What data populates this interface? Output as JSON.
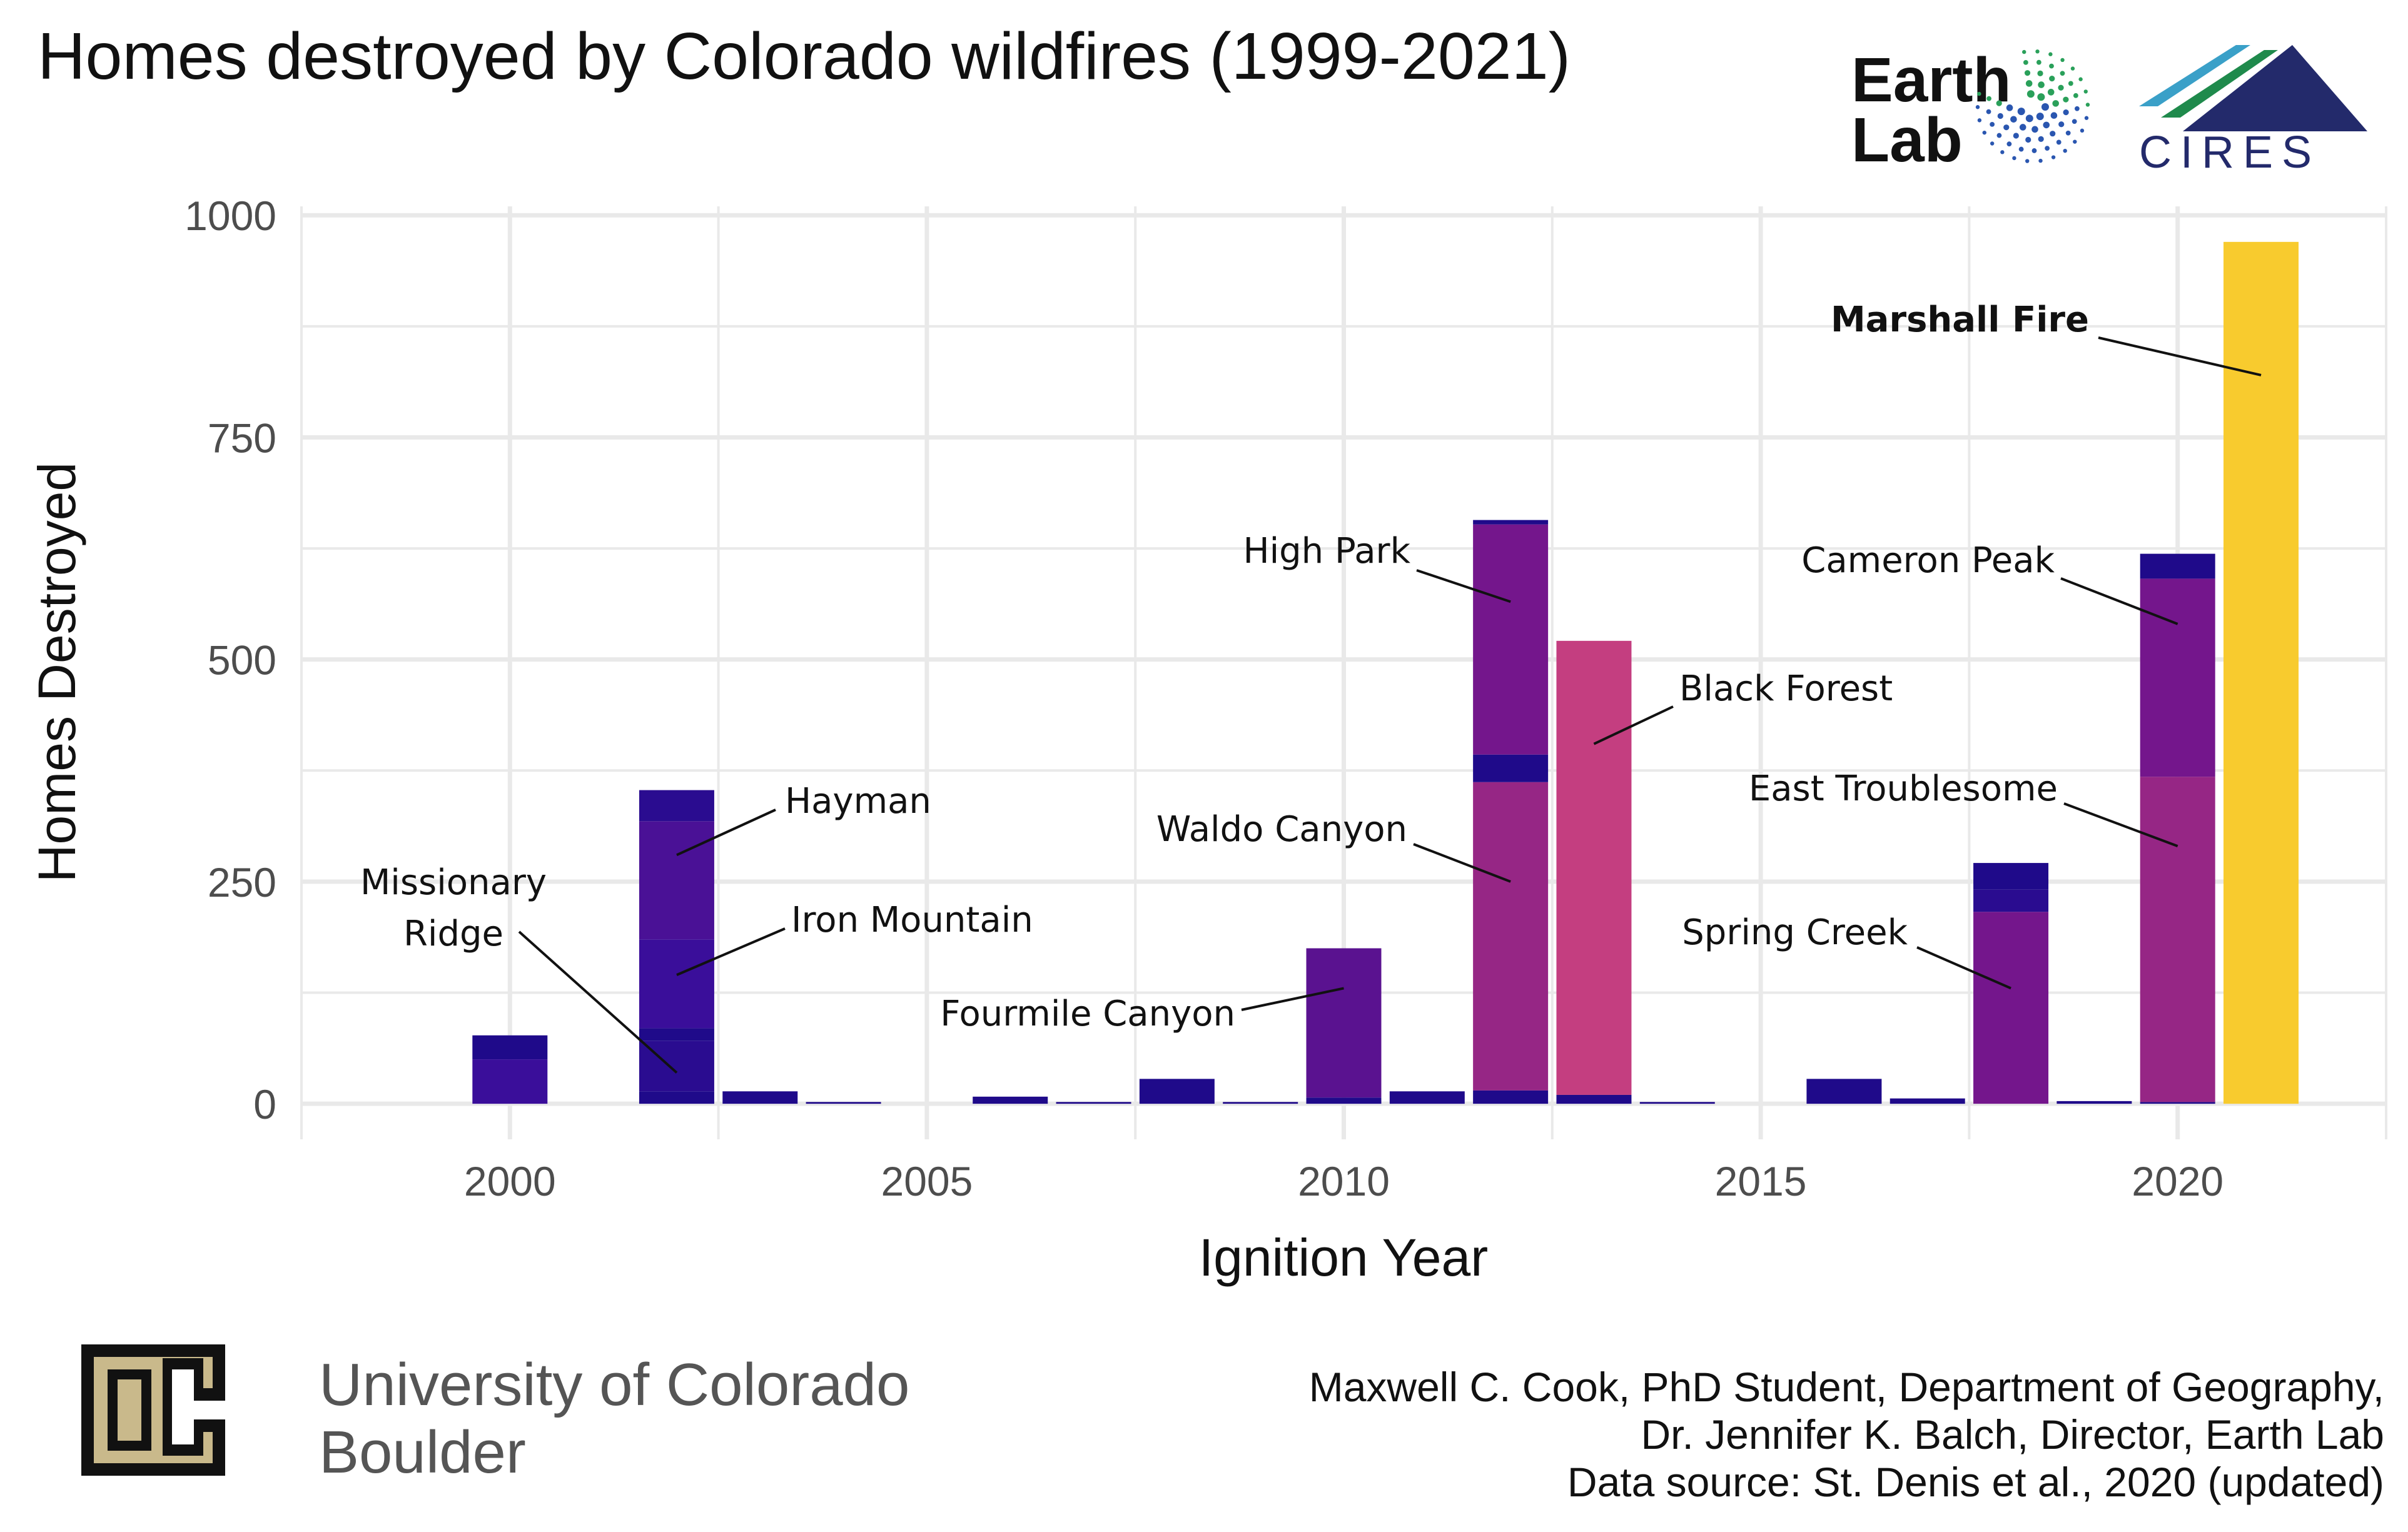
{
  "header": {
    "title": "Homes destroyed by Colorado wildfires (1999-2021)",
    "earthlab_line1": "Earth",
    "earthlab_line2": "Lab",
    "cires": "CIRES"
  },
  "footer": {
    "university_line1": "University of Colorado",
    "university_line2": "Boulder",
    "credit_line1": "Maxwell C. Cook, PhD Student, Department of Geography,",
    "credit_line2": "Dr. Jennifer K. Balch, Director, Earth Lab",
    "credit_line3": "Data source: St. Denis et al., 2020 (updated)"
  },
  "colors": {
    "dark_blue": "#1f0a8a",
    "indigo": "#3a0e9a",
    "purple": "#5a1290",
    "violet": "#74168c",
    "magenta": "#962685",
    "pink": "#c43e80",
    "gold": "#f8cb2e",
    "grid": "#e9e9e9"
  },
  "chart_data": {
    "type": "bar",
    "xlabel": "Ignition Year",
    "ylabel": "Homes Destroyed",
    "xlim": [
      1997.5,
      2022.5
    ],
    "ylim": [
      -40,
      1010
    ],
    "x_ticks": [
      2000,
      2005,
      2010,
      2015,
      2020
    ],
    "y_ticks": [
      0,
      250,
      500,
      750,
      1000
    ],
    "stacked": true,
    "bars": [
      {
        "year": 2000,
        "segments": [
          {
            "value": 50,
            "color": "#3a0e9a"
          },
          {
            "value": 27,
            "color": "#1f0a8a"
          }
        ]
      },
      {
        "year": 2002,
        "segments": [
          {
            "value": 14,
            "color": "#1f0a8a"
          },
          {
            "value": 57,
            "color": "#2a0c90"
          },
          {
            "value": 14,
            "color": "#1f0a8a"
          },
          {
            "value": 100,
            "color": "#3a0e9a"
          },
          {
            "value": 133,
            "color": "#4a1196"
          },
          {
            "value": 35,
            "color": "#2a0c90"
          }
        ]
      },
      {
        "year": 2003,
        "segments": [
          {
            "value": 14,
            "color": "#1f0a8a"
          }
        ]
      },
      {
        "year": 2004,
        "segments": [
          {
            "value": 2,
            "color": "#1f0a8a"
          }
        ]
      },
      {
        "year": 2006,
        "segments": [
          {
            "value": 8,
            "color": "#1f0a8a"
          }
        ]
      },
      {
        "year": 2007,
        "segments": [
          {
            "value": 2,
            "color": "#1f0a8a"
          }
        ]
      },
      {
        "year": 2008,
        "segments": [
          {
            "value": 28,
            "color": "#1f0a8a"
          }
        ]
      },
      {
        "year": 2009,
        "segments": [
          {
            "value": 2,
            "color": "#1f0a8a"
          }
        ]
      },
      {
        "year": 2010,
        "segments": [
          {
            "value": 7,
            "color": "#1f0a8a"
          },
          {
            "value": 168,
            "color": "#5a1290"
          }
        ]
      },
      {
        "year": 2011,
        "segments": [
          {
            "value": 14,
            "color": "#1f0a8a"
          }
        ]
      },
      {
        "year": 2012,
        "segments": [
          {
            "value": 15,
            "color": "#1f0a8a"
          },
          {
            "value": 347,
            "color": "#962685"
          },
          {
            "value": 31,
            "color": "#1f0a8a"
          },
          {
            "value": 259,
            "color": "#74168c"
          },
          {
            "value": 5,
            "color": "#1f0a8a"
          }
        ]
      },
      {
        "year": 2013,
        "segments": [
          {
            "value": 10,
            "color": "#1f0a8a"
          },
          {
            "value": 511,
            "color": "#c43e80"
          }
        ]
      },
      {
        "year": 2014,
        "segments": [
          {
            "value": 2,
            "color": "#1f0a8a"
          }
        ]
      },
      {
        "year": 2016,
        "segments": [
          {
            "value": 28,
            "color": "#1f0a8a"
          }
        ]
      },
      {
        "year": 2017,
        "segments": [
          {
            "value": 6,
            "color": "#1f0a8a"
          }
        ]
      },
      {
        "year": 2018,
        "segments": [
          {
            "value": 216,
            "color": "#74168c"
          },
          {
            "value": 25,
            "color": "#2a0c90"
          },
          {
            "value": 30,
            "color": "#1f0a8a"
          }
        ]
      },
      {
        "year": 2019,
        "segments": [
          {
            "value": 3,
            "color": "#1f0a8a"
          }
        ]
      },
      {
        "year": 2020,
        "segments": [
          {
            "value": 2,
            "color": "#1f0a8a"
          },
          {
            "value": 366,
            "color": "#962685"
          },
          {
            "value": 223,
            "color": "#74168c"
          },
          {
            "value": 28,
            "color": "#1f0a8a"
          }
        ]
      },
      {
        "year": 2021,
        "segments": [
          {
            "value": 970,
            "color": "#f8cb2e"
          }
        ]
      }
    ],
    "annotations": [
      {
        "label": "Missionary",
        "label2": "Ridge",
        "year": 2002,
        "value": 35,
        "bold": false
      },
      {
        "label": "Hayman",
        "year": 2002,
        "value": 280,
        "bold": false
      },
      {
        "label": "Iron Mountain",
        "year": 2002,
        "value": 145,
        "bold": false
      },
      {
        "label": "Fourmile Canyon",
        "year": 2010,
        "value": 130,
        "bold": false
      },
      {
        "label": "High Park",
        "year": 2012,
        "value": 565,
        "bold": false
      },
      {
        "label": "Waldo Canyon",
        "year": 2012,
        "value": 250,
        "bold": false
      },
      {
        "label": "Black Forest",
        "year": 2013,
        "value": 405,
        "bold": false
      },
      {
        "label": "Spring Creek",
        "year": 2018,
        "value": 130,
        "bold": false
      },
      {
        "label": "Cameron Peak",
        "year": 2020,
        "value": 540,
        "bold": false
      },
      {
        "label": "East Troublesome",
        "year": 2020,
        "value": 290,
        "bold": false
      },
      {
        "label": "Marshall Fire",
        "year": 2021,
        "value": 820,
        "bold": true
      }
    ]
  }
}
